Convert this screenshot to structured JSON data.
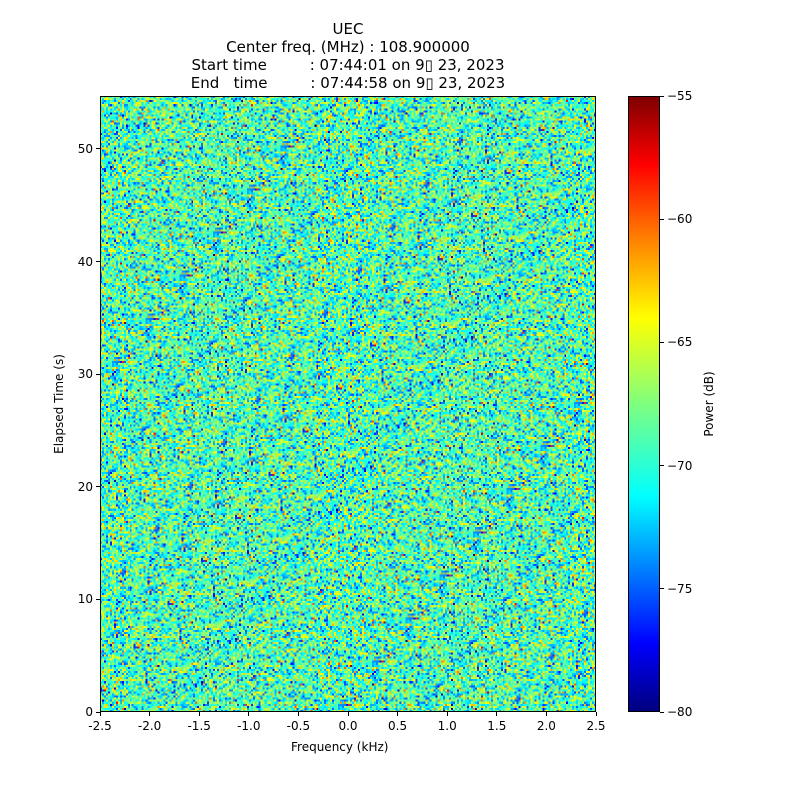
{
  "chart_data": {
    "type": "heatmap",
    "title_lines": [
      "UEC",
      "Center freq. (MHz) : 108.900000",
      "Start time         : 07:44:01 on 9▯ 23, 2023",
      "End   time         : 07:44:58 on 9▯ 23, 2023"
    ],
    "xlabel": "Frequency (kHz)",
    "ylabel": "Elapsed Time (s)",
    "xlim": [
      -2.5,
      2.5
    ],
    "ylim": [
      0,
      54.7
    ],
    "xticks": [
      "-2.5",
      "-2.0",
      "-1.5",
      "-1.0",
      "-0.5",
      "0.0",
      "0.5",
      "1.0",
      "1.5",
      "2.0",
      "2.5"
    ],
    "xtick_values": [
      -2.5,
      -2.0,
      -1.5,
      -1.0,
      -0.5,
      0.0,
      0.5,
      1.0,
      1.5,
      2.0,
      2.5
    ],
    "yticks": [
      "0",
      "10",
      "20",
      "30",
      "40",
      "50"
    ],
    "ytick_values": [
      0,
      10,
      20,
      30,
      40,
      50
    ],
    "colormap": "jet",
    "colorbar": {
      "label": "Power (dB)",
      "range": [
        -80,
        -55
      ],
      "ticks": [
        "−80",
        "−75",
        "−70",
        "−65",
        "−60",
        "−55"
      ],
      "tick_values": [
        -80,
        -75,
        -70,
        -65,
        -60,
        -55
      ]
    },
    "grid": {
      "rows": 300,
      "cols": 250
    },
    "noise": {
      "mean_db": -69,
      "std_db": 3.2
    }
  }
}
